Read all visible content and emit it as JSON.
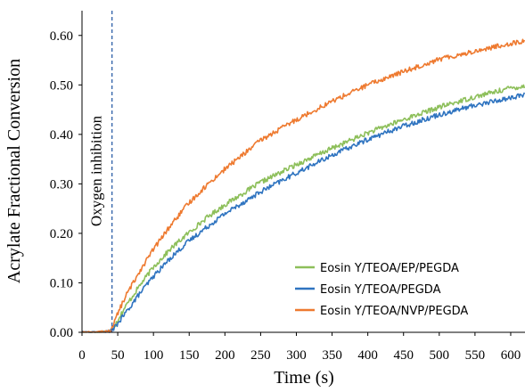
{
  "chart_data": {
    "type": "line",
    "title": "",
    "xlabel": "Time (s)",
    "ylabel": "Acrylate Fractional Conversion",
    "xlim": [
      0,
      620
    ],
    "ylim": [
      0,
      0.65
    ],
    "x_ticks": [
      0,
      50,
      100,
      150,
      200,
      250,
      300,
      350,
      400,
      450,
      500,
      550,
      600
    ],
    "y_ticks": [
      0.0,
      0.1,
      0.2,
      0.3,
      0.4,
      0.5,
      0.6
    ],
    "y_tick_labels": [
      "0.00",
      "0.10",
      "0.20",
      "0.30",
      "0.40",
      "0.50",
      "0.60"
    ],
    "grid": false,
    "legend_position": "bottom-right",
    "annotations": [
      {
        "text": "Oxygen inhibition",
        "x": 42,
        "style": "dashed vertical line",
        "color": "#2E5FA8"
      }
    ],
    "series": [
      {
        "name": "Eosin Y/TEOA/EP/PEGDA",
        "color": "#8DBF5A",
        "x": [
          0,
          20,
          40,
          45,
          50,
          60,
          80,
          100,
          125,
          150,
          175,
          200,
          250,
          300,
          350,
          400,
          450,
          500,
          550,
          600,
          620
        ],
        "y": [
          0.0,
          0.0,
          0.003,
          0.012,
          0.025,
          0.05,
          0.093,
          0.132,
          0.17,
          0.202,
          0.232,
          0.258,
          0.303,
          0.339,
          0.372,
          0.403,
          0.43,
          0.455,
          0.476,
          0.494,
          0.497
        ]
      },
      {
        "name": "Eosin Y/TEOA/PEGDA",
        "color": "#2F74C0",
        "x": [
          0,
          20,
          40,
          45,
          50,
          60,
          80,
          100,
          125,
          150,
          175,
          200,
          250,
          300,
          350,
          400,
          450,
          500,
          550,
          600,
          620
        ],
        "y": [
          0.0,
          0.0,
          0.002,
          0.008,
          0.018,
          0.037,
          0.077,
          0.113,
          0.152,
          0.185,
          0.213,
          0.24,
          0.284,
          0.322,
          0.358,
          0.39,
          0.417,
          0.44,
          0.459,
          0.474,
          0.48
        ]
      },
      {
        "name": "Eosin Y/TEOA/NVP/PEGDA",
        "color": "#EE7A30",
        "x": [
          0,
          20,
          40,
          45,
          50,
          60,
          80,
          100,
          125,
          150,
          175,
          200,
          250,
          300,
          350,
          400,
          450,
          500,
          550,
          600,
          620
        ],
        "y": [
          0.0,
          0.0,
          0.003,
          0.02,
          0.038,
          0.07,
          0.122,
          0.168,
          0.218,
          0.262,
          0.298,
          0.33,
          0.388,
          0.43,
          0.467,
          0.5,
          0.527,
          0.552,
          0.568,
          0.584,
          0.588
        ]
      }
    ]
  }
}
